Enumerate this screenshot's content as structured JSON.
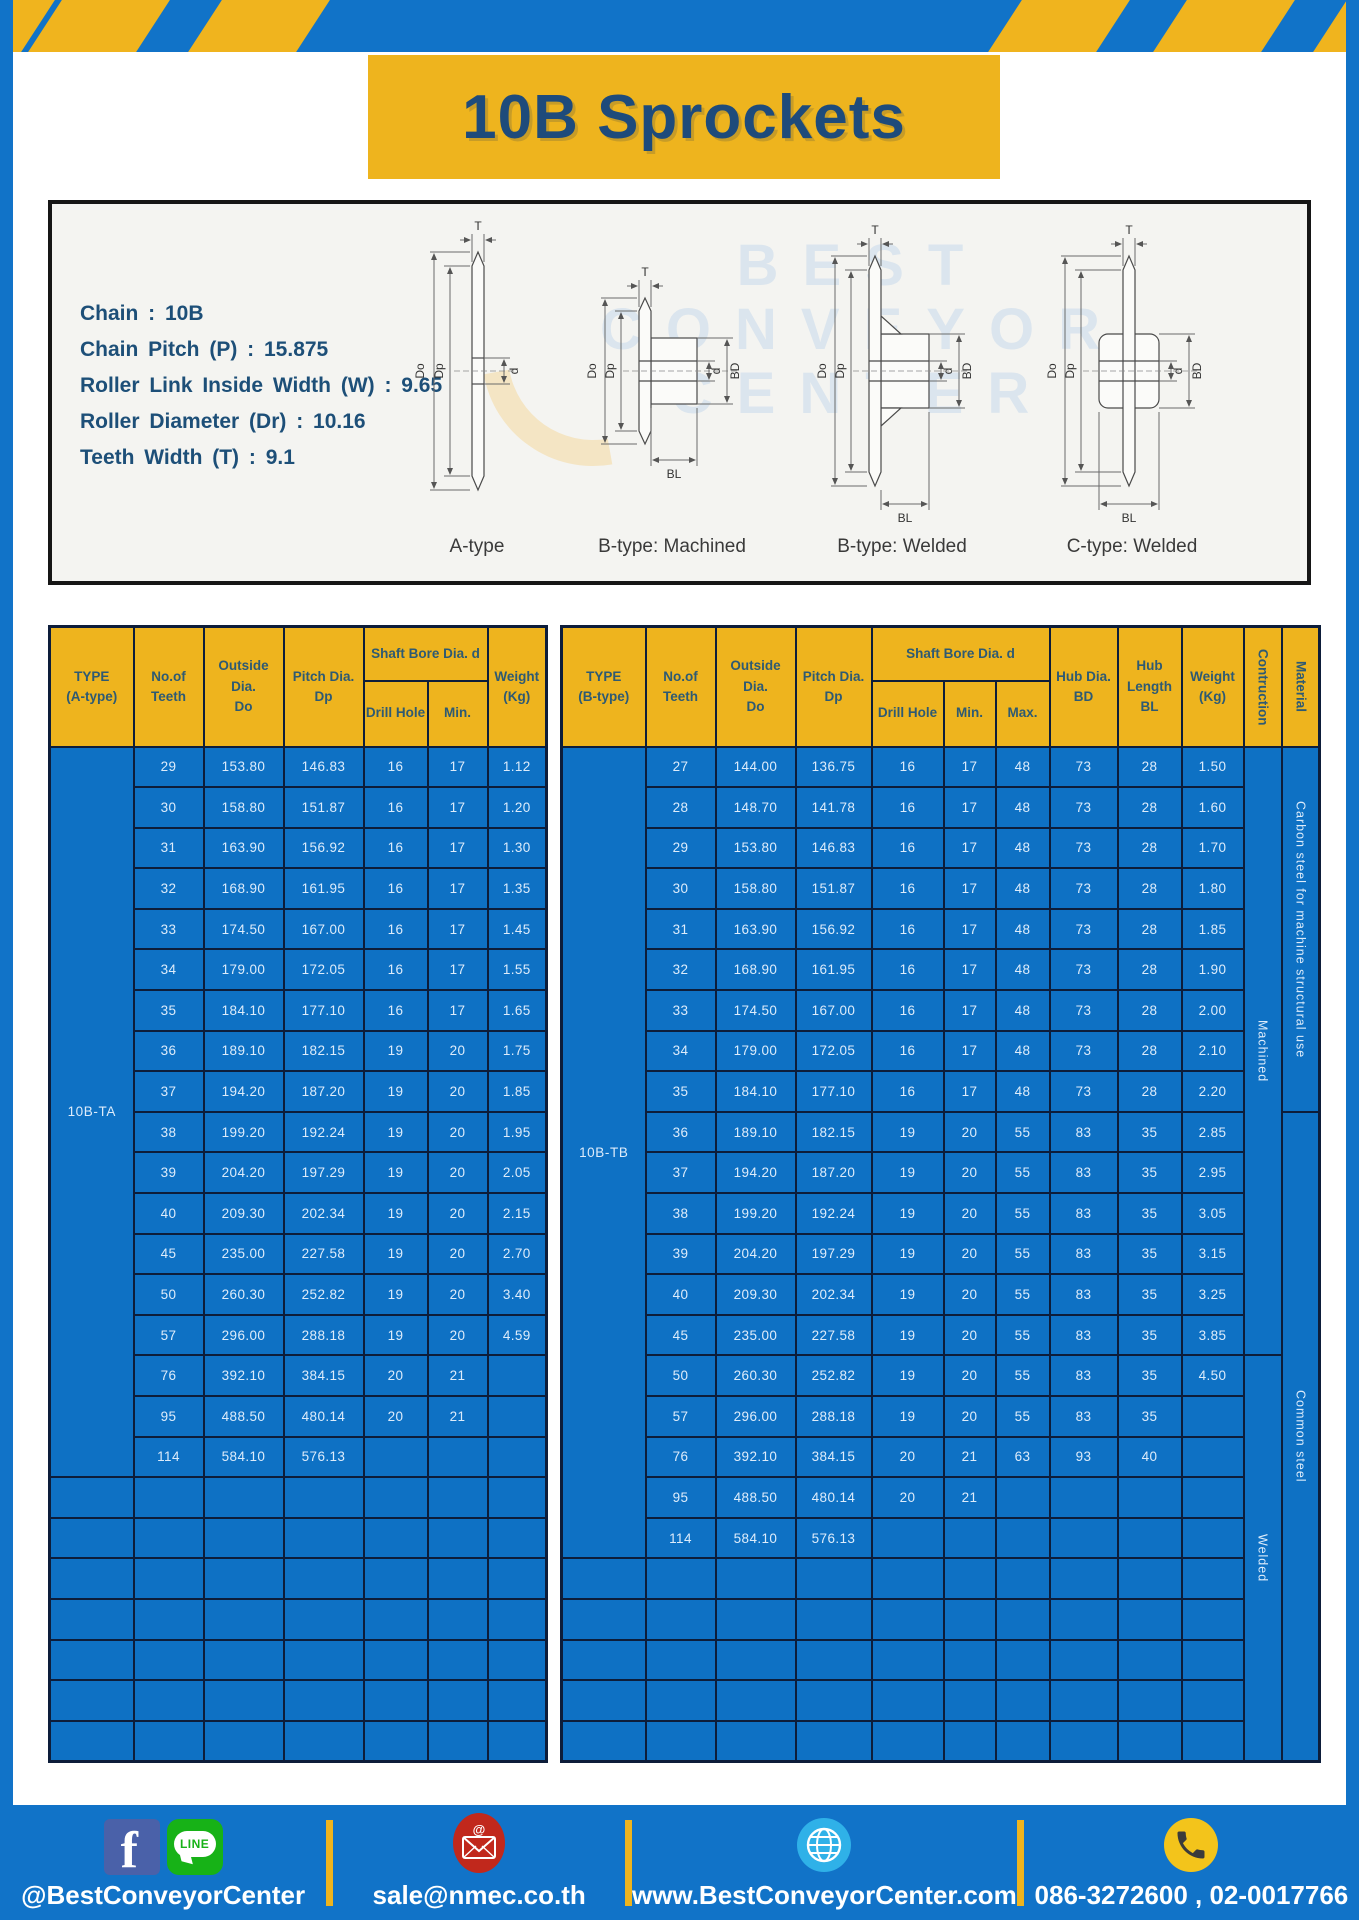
{
  "page": {
    "title": "10B Sprockets"
  },
  "specs": {
    "lines": [
      "Chain : 10B",
      "Chain Pitch (P) : 15.875",
      "Roller Link Inside Width (W) : 9.65",
      "Roller Diameter (Dr) : 10.16",
      "Teeth Width (T) : 9.1"
    ]
  },
  "watermark": {
    "text": "BEST CONVEYOR CENTER"
  },
  "diagrams": {
    "labels": {
      "a": "A-type",
      "bm": "B-type: Machined",
      "bw": "B-type: Welded",
      "cw": "C-type: Welded"
    },
    "dims": {
      "T": "T",
      "Do": "Do",
      "Dp": "Dp",
      "d": "d",
      "BD": "BD",
      "BL": "BL"
    }
  },
  "tables": {
    "left": {
      "type_label": "10B-TA",
      "headers": {
        "type": "TYPE\n(A-type)",
        "teeth": "No.of\nTeeth",
        "outside": "Outside\nDia.\nDo",
        "pitch": "Pitch Dia.\nDp",
        "shaft_bore": "Shaft Bore Dia. d",
        "drill": "Drill Hole",
        "min": "Min.",
        "weight": "Weight\n(Kg)"
      },
      "rows": [
        [
          "29",
          "153.80",
          "146.83",
          "16",
          "17",
          "1.12"
        ],
        [
          "30",
          "158.80",
          "151.87",
          "16",
          "17",
          "1.20"
        ],
        [
          "31",
          "163.90",
          "156.92",
          "16",
          "17",
          "1.30"
        ],
        [
          "32",
          "168.90",
          "161.95",
          "16",
          "17",
          "1.35"
        ],
        [
          "33",
          "174.50",
          "167.00",
          "16",
          "17",
          "1.45"
        ],
        [
          "34",
          "179.00",
          "172.05",
          "16",
          "17",
          "1.55"
        ],
        [
          "35",
          "184.10",
          "177.10",
          "16",
          "17",
          "1.65"
        ],
        [
          "36",
          "189.10",
          "182.15",
          "19",
          "20",
          "1.75"
        ],
        [
          "37",
          "194.20",
          "187.20",
          "19",
          "20",
          "1.85"
        ],
        [
          "38",
          "199.20",
          "192.24",
          "19",
          "20",
          "1.95"
        ],
        [
          "39",
          "204.20",
          "197.29",
          "19",
          "20",
          "2.05"
        ],
        [
          "40",
          "209.30",
          "202.34",
          "19",
          "20",
          "2.15"
        ],
        [
          "45",
          "235.00",
          "227.58",
          "19",
          "20",
          "2.70"
        ],
        [
          "50",
          "260.30",
          "252.82",
          "19",
          "20",
          "3.40"
        ],
        [
          "57",
          "296.00",
          "288.18",
          "19",
          "20",
          "4.59"
        ],
        [
          "76",
          "392.10",
          "384.15",
          "20",
          "21",
          ""
        ],
        [
          "95",
          "488.50",
          "480.14",
          "20",
          "21",
          ""
        ],
        [
          "114",
          "584.10",
          "576.13",
          "",
          "",
          ""
        ]
      ],
      "empty_rows": 7
    },
    "right": {
      "type_label": "10B-TB",
      "headers": {
        "type": "TYPE\n(B-type)",
        "teeth": "No.of\nTeeth",
        "outside": "Outside\nDia.\nDo",
        "pitch": "Pitch Dia.\nDp",
        "shaft_bore": "Shaft Bore Dia. d",
        "drill": "Drill Hole",
        "min": "Min.",
        "max": "Max.",
        "hub_dia": "Hub Dia.\nBD",
        "hub_length": "Hub\nLength\nBL",
        "weight": "Weight\n(Kg)",
        "construction": "Contruction",
        "material": "Material"
      },
      "rows": [
        [
          "27",
          "144.00",
          "136.75",
          "16",
          "17",
          "48",
          "73",
          "28",
          "1.50"
        ],
        [
          "28",
          "148.70",
          "141.78",
          "16",
          "17",
          "48",
          "73",
          "28",
          "1.60"
        ],
        [
          "29",
          "153.80",
          "146.83",
          "16",
          "17",
          "48",
          "73",
          "28",
          "1.70"
        ],
        [
          "30",
          "158.80",
          "151.87",
          "16",
          "17",
          "48",
          "73",
          "28",
          "1.80"
        ],
        [
          "31",
          "163.90",
          "156.92",
          "16",
          "17",
          "48",
          "73",
          "28",
          "1.85"
        ],
        [
          "32",
          "168.90",
          "161.95",
          "16",
          "17",
          "48",
          "73",
          "28",
          "1.90"
        ],
        [
          "33",
          "174.50",
          "167.00",
          "16",
          "17",
          "48",
          "73",
          "28",
          "2.00"
        ],
        [
          "34",
          "179.00",
          "172.05",
          "16",
          "17",
          "48",
          "73",
          "28",
          "2.10"
        ],
        [
          "35",
          "184.10",
          "177.10",
          "16",
          "17",
          "48",
          "73",
          "28",
          "2.20"
        ],
        [
          "36",
          "189.10",
          "182.15",
          "19",
          "20",
          "55",
          "83",
          "35",
          "2.85"
        ],
        [
          "37",
          "194.20",
          "187.20",
          "19",
          "20",
          "55",
          "83",
          "35",
          "2.95"
        ],
        [
          "38",
          "199.20",
          "192.24",
          "19",
          "20",
          "55",
          "83",
          "35",
          "3.05"
        ],
        [
          "39",
          "204.20",
          "197.29",
          "19",
          "20",
          "55",
          "83",
          "35",
          "3.15"
        ],
        [
          "40",
          "209.30",
          "202.34",
          "19",
          "20",
          "55",
          "83",
          "35",
          "3.25"
        ],
        [
          "45",
          "235.00",
          "227.58",
          "19",
          "20",
          "55",
          "83",
          "35",
          "3.85"
        ],
        [
          "50",
          "260.30",
          "252.82",
          "19",
          "20",
          "55",
          "83",
          "35",
          "4.50"
        ],
        [
          "57",
          "296.00",
          "288.18",
          "19",
          "20",
          "55",
          "83",
          "35",
          ""
        ],
        [
          "76",
          "392.10",
          "384.15",
          "20",
          "21",
          "63",
          "93",
          "40",
          ""
        ],
        [
          "95",
          "488.50",
          "480.14",
          "20",
          "21",
          "",
          "",
          "",
          ""
        ],
        [
          "114",
          "584.10",
          "576.13",
          "",
          "",
          "",
          "",
          "",
          ""
        ]
      ],
      "empty_rows": 5,
      "construction_spans": [
        {
          "label": "Machined",
          "row": 0,
          "span": 15
        },
        {
          "label": "Welded",
          "row": 15,
          "span": 10
        }
      ],
      "material_spans": [
        {
          "label": "Carbon steel for machine structural use",
          "row": 0,
          "span": 9
        },
        {
          "label": "Common steel",
          "row": 9,
          "span": 16
        }
      ]
    }
  },
  "footer": {
    "items": [
      {
        "icons": [
          "facebook-icon",
          "line-icon"
        ],
        "label": "@BestConveyorCenter"
      },
      {
        "icons": [
          "email-icon"
        ],
        "label": "sale@nmec.co.th"
      },
      {
        "icons": [
          "globe-icon"
        ],
        "label": "www.BestConveyorCenter.com"
      },
      {
        "icons": [
          "phone-icon"
        ],
        "label": "086-3272600 , 02-0017766"
      }
    ]
  },
  "colors": {
    "page_blue": "#1173c8",
    "table_cell_blue": "#0e71c4",
    "header_gold": "#eeb41e",
    "table_border_navy": "#0d1d3a",
    "header_text": "#2e5a73",
    "title_text": "#1e4b7b",
    "footer_text": "#ffffff"
  }
}
